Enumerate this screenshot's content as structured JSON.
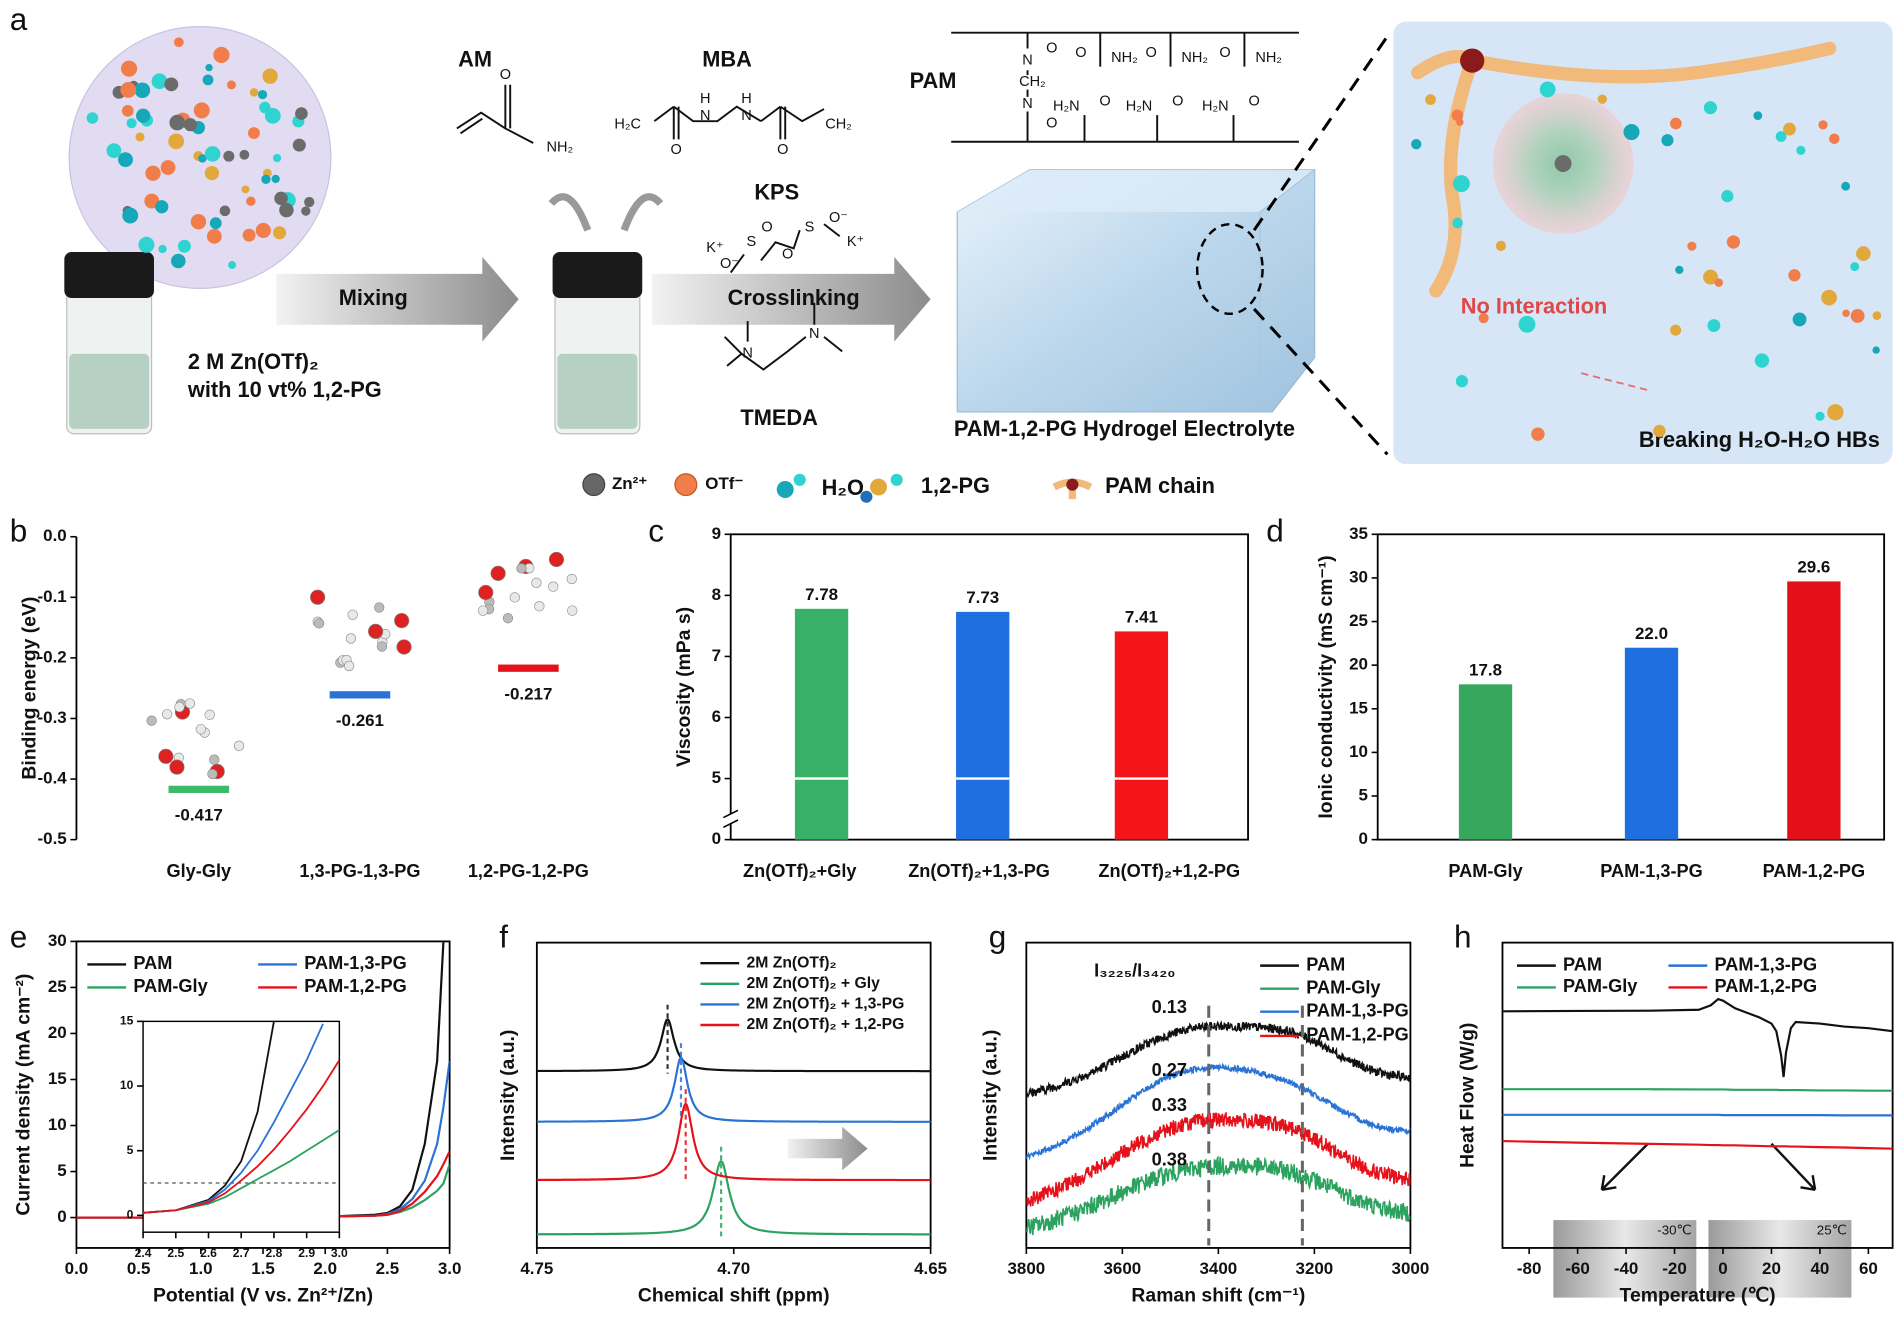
{
  "schematic": {
    "panel": "a",
    "structures": [
      {
        "label": "AM",
        "atoms": [
          "O",
          "NH₂"
        ]
      },
      {
        "label": "MBA",
        "atoms": [
          "H₂C",
          "O",
          "N",
          "H",
          "N",
          "H",
          "O",
          "CH₂"
        ]
      },
      {
        "label": "KPS",
        "atoms": [
          "K⁺",
          "O⁻",
          "S",
          "O",
          "O",
          "S",
          "O⁻",
          "K⁺"
        ]
      },
      {
        "label": "TMEDA",
        "atoms": [
          "N",
          "N"
        ]
      },
      {
        "label": "PAM",
        "atoms": [
          "O",
          "N",
          "CH₂",
          "N",
          "O",
          "O",
          "NH₂",
          "O",
          "NH₂",
          "O",
          "NH₂",
          "H₂N",
          "O",
          "H₂N",
          "O",
          "H₂N",
          "O"
        ]
      }
    ],
    "steps": [
      "Mixing",
      "Crosslinking"
    ],
    "solution": [
      "2 M Zn(OTf)₂",
      "with 10 vt% 1,2-PG"
    ],
    "product": "PAM-1,2-PG Hydrogel Electrolyte",
    "callouts": [
      "No Interaction",
      "Breaking H₂O-H₂O HBs"
    ],
    "legend": [
      "Zn²⁺",
      "OTf⁻",
      "H₂O",
      "1,2-PG",
      "PAM chain"
    ]
  },
  "chart_data": [
    {
      "panel": "b",
      "type": "level",
      "ylabel": "Binding energy (eV)",
      "categories": [
        "Gly-Gly",
        "1,3-PG-1,3-PG",
        "1,2-PG-1,2-PG"
      ],
      "values": [
        -0.417,
        -0.261,
        -0.217
      ],
      "colors": [
        "#3dbb6a",
        "#2a73d6",
        "#e5121b"
      ],
      "ylim": [
        -0.5,
        0
      ],
      "yticks": [
        {
          "value": 0,
          "label": "0.0"
        },
        -0.1,
        -0.2,
        -0.3,
        -0.4,
        -0.5
      ]
    },
    {
      "panel": "c",
      "type": "bar",
      "ylabel": "Viscosity (mPa s)",
      "categories": [
        "Zn(OTf)₂+Gly",
        "Zn(OTf)₂+1,3-PG",
        "Zn(OTf)₂+1,2-PG"
      ],
      "values": [
        7.78,
        7.73,
        7.41
      ],
      "colors": [
        "#38b068",
        "#1f6fe0",
        "#f5141a"
      ],
      "ylim": [
        0,
        9
      ],
      "ybreak": [
        0,
        5
      ],
      "yticks": [
        0,
        5,
        6,
        7,
        8,
        9
      ]
    },
    {
      "panel": "d",
      "type": "bar",
      "ylabel": "Ionic conductivity (mS cm⁻¹)",
      "categories": [
        "PAM-Gly",
        "PAM-1,3-PG",
        "PAM-1,2-PG"
      ],
      "values": [
        17.8,
        22.0,
        29.6
      ],
      "value_labels": [
        "17.8",
        "22.0",
        "29.6"
      ],
      "colors": [
        "#35a85e",
        "#1f6fe0",
        "#e3101a"
      ],
      "ylim": [
        0,
        35
      ],
      "yticks": [
        0,
        5,
        10,
        15,
        20,
        25,
        30,
        35
      ]
    },
    {
      "panel": "e",
      "type": "line",
      "ylabel": "Current density (mA cm⁻²)",
      "xlabel": "Potential (V vs. Zn²⁺/Zn)",
      "x": [
        0,
        0.5,
        1,
        1.5,
        2,
        2.4,
        2.5,
        2.6,
        2.7,
        2.8,
        2.9,
        2.95,
        3
      ],
      "series": [
        {
          "name": "PAM",
          "color": "#111111",
          "values": [
            0,
            0,
            0,
            0,
            0.1,
            0.3,
            0.5,
            1.2,
            3,
            8,
            17,
            30,
            null
          ]
        },
        {
          "name": "PAM-Gly",
          "color": "#2ca25f",
          "values": [
            0,
            0,
            0,
            0,
            0.1,
            0.2,
            0.3,
            0.6,
            1.1,
            1.9,
            2.9,
            3.7,
            5.8
          ]
        },
        {
          "name": "PAM-1,3-PG",
          "color": "#2a73d6",
          "values": [
            0,
            0,
            0,
            0,
            0.1,
            0.2,
            0.4,
            0.9,
            2,
            4,
            8,
            12,
            17
          ]
        },
        {
          "name": "PAM-1,2-PG",
          "color": "#e5121b",
          "values": [
            0,
            0,
            0,
            0,
            0.1,
            0.2,
            0.3,
            0.7,
            1.5,
            2.8,
            4.5,
            5.8,
            7.2
          ]
        }
      ],
      "xlim": [
        0,
        3
      ],
      "xticks": [
        {
          "value": 0,
          "label": "0.0"
        },
        0.5,
        {
          "value": 1,
          "label": "1.0"
        },
        1.5,
        {
          "value": 2,
          "label": "2.0"
        },
        2.5,
        {
          "value": 3,
          "label": "3.0"
        }
      ],
      "ylim": [
        -3.3,
        30
      ],
      "yticks": [
        0,
        5,
        10,
        15,
        20,
        25,
        30
      ],
      "inset": {
        "x": [
          2.4,
          2.5,
          2.6,
          2.65,
          2.7,
          2.75,
          2.8,
          2.85,
          2.9,
          2.95,
          3
        ],
        "series": [
          {
            "values": [
              0.2,
              0.4,
              1.2,
              2.3,
              4.2,
              8,
              15,
              null,
              null,
              null,
              null
            ]
          },
          {
            "values": [
              0.2,
              0.4,
              0.9,
              1.4,
              2.1,
              2.8,
              3.5,
              4.2,
              5,
              5.8,
              6.6
            ]
          },
          {
            "values": [
              0.2,
              0.4,
              1.1,
              2,
              3.3,
              5,
              7.2,
              9.6,
              12,
              14.8,
              null
            ]
          },
          {
            "values": [
              0.2,
              0.4,
              1,
              1.7,
              2.7,
              3.8,
              5.1,
              6.6,
              8.2,
              10,
              12
            ]
          }
        ],
        "xlim": [
          2.4,
          3
        ],
        "xticks": [
          2.4,
          2.5,
          2.6,
          2.7,
          2.8,
          2.9,
          {
            "value": 3,
            "label": "3.0"
          }
        ],
        "ylim": [
          -1.3,
          15
        ],
        "yticks": [
          0,
          5,
          10,
          15
        ],
        "hline": 2.5
      }
    },
    {
      "panel": "f",
      "type": "peaks",
      "ylabel": "Intensity (a.u.)",
      "xlabel": "Chemical shift (ppm)",
      "series": [
        {
          "name": "2M Zn(OTf)₂",
          "color": "#111111",
          "center": 4.7168,
          "height": 1.7,
          "width": 0.002,
          "offset": 5.79
        },
        {
          "name": "2M Zn(OTf)₂ + Gly",
          "color": "#2ca25f",
          "center": 4.7032,
          "height": 2.4,
          "width": 0.0025,
          "offset": 0.44
        },
        {
          "name": "2M Zn(OTf)₂ + 1,3-PG",
          "color": "#2a73d6",
          "center": 4.7134,
          "height": 2.1,
          "width": 0.002,
          "offset": 4.13
        },
        {
          "name": "2M Zn(OTf)₂ + 1,2-PG",
          "color": "#e5121b",
          "center": 4.7122,
          "height": 2.5,
          "width": 0.0022,
          "offset": 2.22
        }
      ],
      "xlim": [
        4.75,
        4.65
      ],
      "xticks": [
        4.75,
        {
          "value": 4.7,
          "label": "4.70"
        },
        4.65
      ],
      "ylim": [
        0,
        10
      ]
    },
    {
      "panel": "g",
      "type": "spectrum",
      "ylabel": "Intensity (a.u.)",
      "xlabel": "Raman shift (cm⁻¹)",
      "annotation": "I₃₂₂₅/I₃₄₂₀",
      "vlines": [
        3420,
        3225
      ],
      "series": [
        {
          "name": "PAM",
          "color": "#111111",
          "ratio": 0.13,
          "baseline": [
            4.9,
            5.5
          ],
          "peaks": [
            [
              3440,
              2.0,
              160
            ],
            [
              3225,
              0.8,
              90
            ]
          ],
          "noise": 0.15
        },
        {
          "name": "PAM-Gly",
          "color": "#2ca25f",
          "ratio": 0.38,
          "baseline": [
            0.4,
            1.0
          ],
          "peaks": [
            [
              3440,
              1.9,
              180
            ],
            [
              3225,
              0.6,
              100
            ]
          ],
          "noise": 0.3
        },
        {
          "name": "PAM-1,3-PG",
          "color": "#2a73d6",
          "ratio": 0.27,
          "baseline": [
            2.7,
            3.7
          ],
          "peaks": [
            [
              3440,
              2.7,
              170
            ],
            [
              3225,
              0.6,
              90
            ]
          ],
          "noise": 0.1
        },
        {
          "name": "PAM-1,2-PG",
          "color": "#e5121b",
          "ratio": 0.33,
          "baseline": [
            1.2,
            2.1
          ],
          "peaks": [
            [
              3440,
              2.5,
              180
            ],
            [
              3225,
              0.7,
              90
            ]
          ],
          "noise": 0.25
        }
      ],
      "xlim": [
        3800,
        3000
      ],
      "xticks": [
        3800,
        3600,
        3400,
        3200,
        3000
      ],
      "ylim": [
        0,
        10
      ]
    },
    {
      "panel": "h",
      "type": "line",
      "ylabel": "Heat Flow (W/g)",
      "xlabel": "Temperature (℃)",
      "annotations": [
        "-30℃",
        "25℃"
      ],
      "x": [
        -91,
        -60,
        -30,
        -10,
        -5,
        -2,
        0,
        5,
        10,
        15,
        20,
        22,
        24,
        25,
        26,
        28,
        30,
        40,
        50,
        60,
        70
      ],
      "series": [
        {
          "name": "PAM",
          "color": "#111111",
          "values": [
            7.75,
            7.76,
            7.77,
            7.8,
            7.95,
            8.15,
            8.1,
            7.85,
            7.7,
            7.55,
            7.35,
            7.1,
            6.3,
            5.6,
            6.4,
            7.2,
            7.4,
            7.35,
            7.25,
            7.2,
            7.1
          ]
        },
        {
          "name": "PAM-Gly",
          "color": "#2ca25f",
          "values": [
            5.2,
            5.2,
            5.2,
            5.19,
            5.19,
            5.19,
            5.19,
            5.18,
            5.18,
            5.18,
            5.18,
            5.18,
            5.17,
            5.17,
            5.17,
            5.17,
            5.17,
            5.16,
            5.16,
            5.15,
            5.15
          ]
        },
        {
          "name": "PAM-1,3-PG",
          "color": "#2a73d6",
          "values": [
            4.36,
            4.36,
            4.36,
            4.36,
            4.36,
            4.36,
            4.35,
            4.35,
            4.35,
            4.35,
            4.35,
            4.35,
            4.35,
            4.35,
            4.35,
            4.35,
            4.35,
            4.35,
            4.34,
            4.34,
            4.34
          ]
        },
        {
          "name": "PAM-1,2-PG",
          "color": "#e5121b",
          "values": [
            3.5,
            3.45,
            3.41,
            3.38,
            3.37,
            3.37,
            3.36,
            3.36,
            3.35,
            3.34,
            3.33,
            3.33,
            3.33,
            3.33,
            3.33,
            3.32,
            3.32,
            3.3,
            3.29,
            3.27,
            3.25
          ]
        }
      ],
      "xlim": [
        -91,
        70
      ],
      "xticks": [
        -80,
        -60,
        -40,
        -20,
        0,
        20,
        40,
        60
      ],
      "ylim": [
        0,
        10
      ]
    }
  ]
}
